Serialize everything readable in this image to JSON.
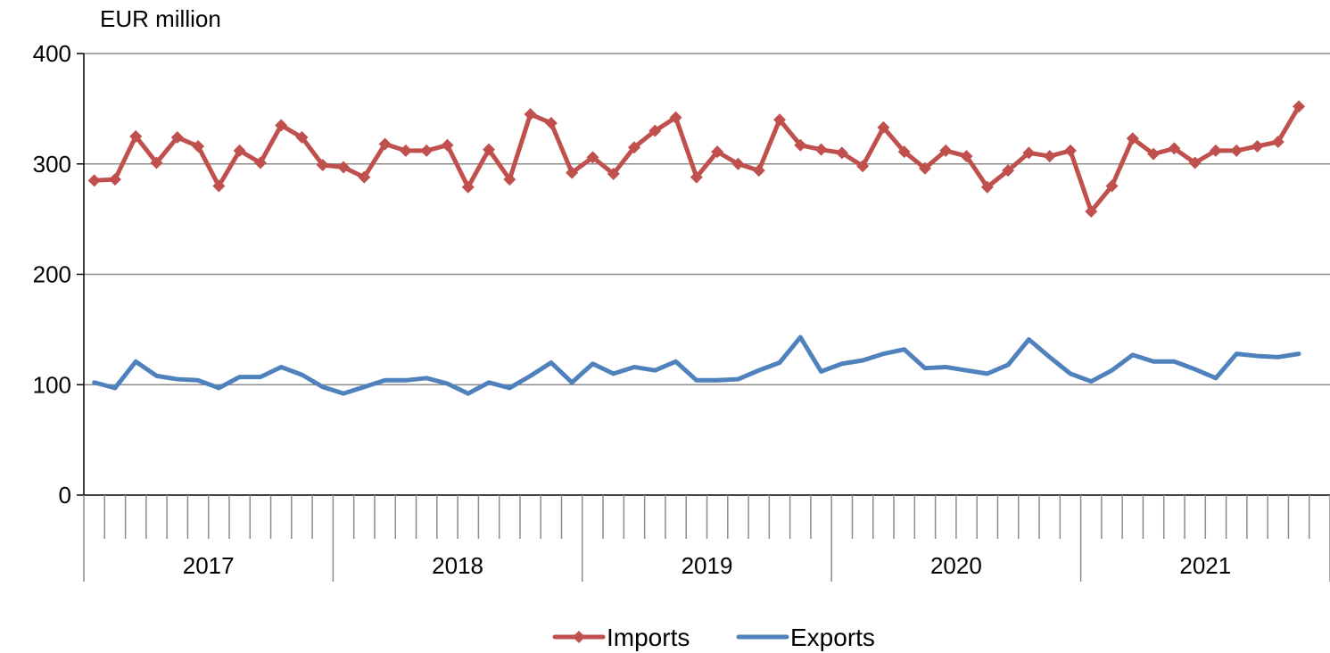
{
  "chart_data": {
    "type": "line",
    "unit_label": "EUR million",
    "ylim": [
      0,
      400
    ],
    "yticks": [
      0,
      100,
      200,
      300,
      400
    ],
    "grid": true,
    "legend_position": "bottom",
    "years": [
      "2017",
      "2018",
      "2019",
      "2020",
      "2021"
    ],
    "months_per_year": 12,
    "series": [
      {
        "name": "Imports",
        "color": "#C0504D",
        "marker": "diamond",
        "values": [
          285,
          286,
          325,
          301,
          324,
          316,
          280,
          312,
          301,
          335,
          324,
          299,
          297,
          288,
          318,
          312,
          312,
          317,
          279,
          313,
          286,
          345,
          337,
          292,
          306,
          291,
          315,
          330,
          342,
          288,
          311,
          300,
          294,
          340,
          317,
          313,
          310,
          298,
          333,
          311,
          296,
          312,
          307,
          279,
          294,
          310,
          307,
          312,
          257,
          280,
          323,
          309,
          314,
          301,
          312,
          312,
          316,
          320,
          352
        ]
      },
      {
        "name": "Exports",
        "color": "#4F81BD",
        "marker": "none",
        "values": [
          102,
          97,
          121,
          108,
          105,
          104,
          97,
          107,
          107,
          116,
          109,
          98,
          92,
          98,
          104,
          104,
          106,
          101,
          92,
          102,
          97,
          108,
          120,
          102,
          119,
          110,
          116,
          113,
          121,
          104,
          104,
          105,
          113,
          120,
          143,
          112,
          119,
          122,
          128,
          132,
          115,
          116,
          113,
          110,
          118,
          141,
          125,
          110,
          103,
          113,
          127,
          121,
          121,
          114,
          106,
          128,
          126,
          125,
          128
        ]
      }
    ]
  }
}
